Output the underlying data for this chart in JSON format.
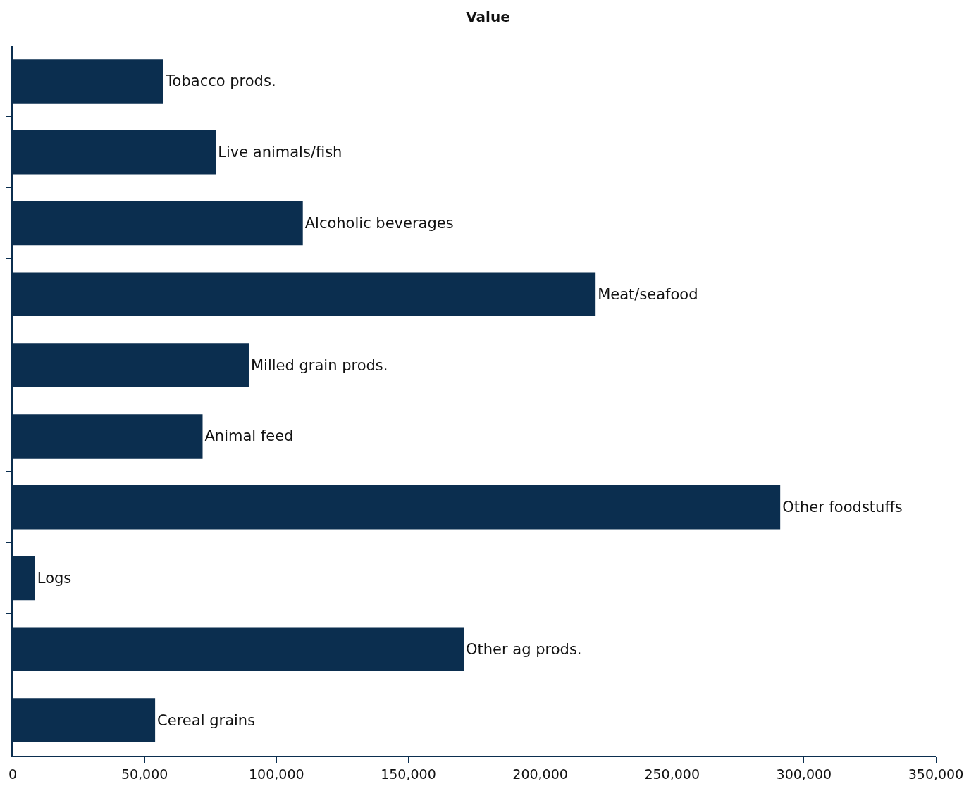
{
  "chart_data": {
    "type": "bar",
    "orientation": "horizontal",
    "title": "Value",
    "categories": [
      "Tobacco prods.",
      "Live animals/fish",
      "Alcoholic beverages",
      "Meat/seafood",
      "Milled grain prods.",
      "Animal feed",
      "Other foodstuffs",
      "Logs",
      "Other ag prods.",
      "Cereal grains"
    ],
    "values": [
      57000,
      77000,
      110000,
      221000,
      89500,
      72000,
      291000,
      8500,
      171000,
      54000
    ],
    "color": "#0b2e4f",
    "xlim": [
      0,
      350000
    ],
    "xticks": [
      {
        "value": 0,
        "label": "0"
      },
      {
        "value": 50000,
        "label": "50,000"
      },
      {
        "value": 100000,
        "label": "100,000"
      },
      {
        "value": 150000,
        "label": "150,000"
      },
      {
        "value": 200000,
        "label": "200,000"
      },
      {
        "value": 250000,
        "label": "250,000"
      },
      {
        "value": 300000,
        "label": "300,000"
      },
      {
        "value": 350000,
        "label": "350,000"
      }
    ],
    "tick_labels": "x",
    "grid": false,
    "legend": false
  }
}
